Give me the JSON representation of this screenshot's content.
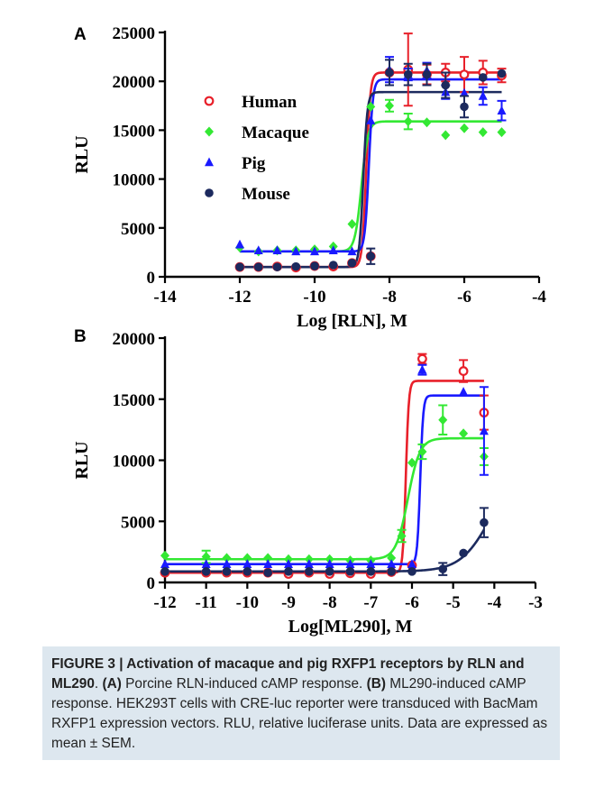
{
  "chart_data": [
    {
      "panel": "A",
      "type": "scatter",
      "xlabel": "Log [RLN], M",
      "ylabel": "RLU",
      "xlim": [
        -14,
        -4
      ],
      "ylim": [
        0,
        25000
      ],
      "xticks": [
        -14,
        -12,
        -10,
        -8,
        -6,
        -4
      ],
      "yticks": [
        0,
        5000,
        10000,
        15000,
        20000,
        25000
      ],
      "legend_position": "upper-left",
      "series": [
        {
          "name": "Human",
          "marker": "circle-open",
          "color": "#e8202a",
          "x": [
            -12,
            -11.5,
            -11,
            -10.5,
            -10,
            -9.5,
            -9,
            -8.5,
            -8,
            -7.5,
            -7,
            -6.5,
            -6,
            -5.5,
            -5
          ],
          "y": [
            1000,
            1000,
            1050,
            950,
            1100,
            1050,
            1400,
            2100,
            20900,
            21200,
            20700,
            20900,
            20700,
            20900,
            20600
          ],
          "err": [
            0,
            0,
            0,
            0,
            0,
            0,
            0,
            0,
            0,
            3700,
            1000,
            900,
            1800,
            1200,
            700
          ],
          "fit": {
            "bottom": 1000,
            "top": 20900,
            "logec50": -8.62,
            "hill": 8
          }
        },
        {
          "name": "Macaque",
          "marker": "diamond",
          "color": "#33e833",
          "x": [
            -12,
            -11.5,
            -11,
            -10.5,
            -10,
            -9.5,
            -9,
            -8.5,
            -8,
            -7.5,
            -7,
            -6.5,
            -6,
            -5.5,
            -5
          ],
          "y": [
            3000,
            2600,
            2700,
            2700,
            2800,
            3100,
            5400,
            17400,
            17500,
            15900,
            15800,
            14500,
            15200,
            14800,
            14800
          ],
          "err": [
            0,
            0,
            0,
            0,
            0,
            0,
            0,
            0,
            600,
            800,
            0,
            0,
            0,
            0,
            0
          ],
          "fit": {
            "bottom": 2600,
            "top": 15900,
            "logec50": -8.75,
            "hill": 5
          }
        },
        {
          "name": "Pig",
          "marker": "triangle",
          "color": "#1a1aff",
          "x": [
            -12,
            -11.5,
            -11,
            -10.5,
            -10,
            -9.5,
            -9,
            -8.5,
            -8,
            -7.5,
            -7,
            -6.5,
            -6,
            -5.5,
            -5
          ],
          "y": [
            3300,
            2700,
            2700,
            2600,
            2600,
            2700,
            2600,
            16000,
            21200,
            20700,
            21100,
            18900,
            18800,
            18500,
            17000
          ],
          "err": [
            0,
            0,
            0,
            0,
            0,
            0,
            0,
            0,
            1300,
            600,
            800,
            700,
            0,
            900,
            1000
          ],
          "fit": {
            "bottom": 2600,
            "top": 20200,
            "logec50": -8.55,
            "hill": 8
          }
        },
        {
          "name": "Mouse",
          "marker": "circle",
          "color": "#1c2a5e",
          "x": [
            -12,
            -11.5,
            -11,
            -10.5,
            -10,
            -9.5,
            -9,
            -8.5,
            -8,
            -7.5,
            -7,
            -6.5,
            -6,
            -5.5,
            -5
          ],
          "y": [
            1000,
            1000,
            1000,
            1050,
            1100,
            1200,
            1400,
            2100,
            20900,
            20700,
            20700,
            19600,
            17400,
            20400,
            20800
          ],
          "err": [
            0,
            0,
            0,
            0,
            0,
            0,
            0,
            800,
            1300,
            1100,
            1100,
            1300,
            1100,
            0,
            0
          ],
          "fit": {
            "bottom": 1000,
            "top": 18900,
            "logec50": -8.7,
            "hill": 8
          }
        }
      ]
    },
    {
      "panel": "B",
      "type": "scatter",
      "xlabel": "Log[ML290], M",
      "ylabel": "RLU",
      "xlim": [
        -12,
        -3
      ],
      "ylim": [
        0,
        20000
      ],
      "xticks": [
        -12,
        -11,
        -10,
        -9,
        -8,
        -7,
        -6,
        -5,
        -4,
        -3
      ],
      "yticks": [
        0,
        5000,
        10000,
        15000,
        20000
      ],
      "series": [
        {
          "name": "Human",
          "marker": "circle-open",
          "color": "#e8202a",
          "x": [
            -12,
            -11,
            -10.5,
            -10,
            -9.5,
            -9,
            -8.5,
            -8,
            -7.5,
            -7,
            -6.5,
            -6,
            -5.75,
            -4.75,
            -4.25
          ],
          "y": [
            800,
            800,
            800,
            800,
            800,
            700,
            800,
            700,
            750,
            700,
            850,
            1400,
            18300,
            17300,
            13900
          ],
          "err": [
            0,
            0,
            0,
            0,
            0,
            0,
            0,
            0,
            0,
            0,
            0,
            0,
            400,
            900,
            1400
          ],
          "fit": {
            "bottom": 800,
            "top": 16500,
            "logec50": -6.15,
            "hill": 12
          }
        },
        {
          "name": "Macaque",
          "marker": "diamond",
          "color": "#33e833",
          "x": [
            -12,
            -11,
            -10.5,
            -10,
            -9.5,
            -9,
            -8.5,
            -8,
            -7.5,
            -7,
            -6.5,
            -6.25,
            -6,
            -5.75,
            -5.25,
            -4.75,
            -4.25
          ],
          "y": [
            2200,
            2100,
            2000,
            2000,
            2000,
            1900,
            1900,
            1900,
            1800,
            1800,
            2000,
            3800,
            9800,
            10700,
            13300,
            12200,
            10300
          ],
          "err": [
            0,
            500,
            0,
            0,
            0,
            0,
            0,
            0,
            0,
            0,
            0,
            500,
            0,
            600,
            1200,
            0,
            700
          ],
          "fit": {
            "bottom": 1900,
            "top": 11800,
            "logec50": -6.1,
            "hill": 3
          }
        },
        {
          "name": "Pig",
          "marker": "triangle",
          "color": "#1a1aff",
          "x": [
            -12,
            -11,
            -10.5,
            -10,
            -9.5,
            -9,
            -8.5,
            -8,
            -7.5,
            -7,
            -6.5,
            -6,
            -5.75,
            -4.75,
            -4.25
          ],
          "y": [
            1500,
            1500,
            1500,
            1500,
            1500,
            1500,
            1500,
            1500,
            1500,
            1500,
            1500,
            1500,
            17400,
            15600,
            12400
          ],
          "err": [
            0,
            0,
            0,
            0,
            0,
            0,
            0,
            0,
            0,
            0,
            0,
            0,
            400,
            0,
            3600
          ],
          "fit": {
            "bottom": 1500,
            "top": 15300,
            "logec50": -5.8,
            "hill": 12
          }
        },
        {
          "name": "Mouse",
          "marker": "circle",
          "color": "#1c2a5e",
          "x": [
            -12,
            -11,
            -10.5,
            -10,
            -9.5,
            -9,
            -8.5,
            -8,
            -7.5,
            -7,
            -6.5,
            -6,
            -5.25,
            -4.75,
            -4.25
          ],
          "y": [
            900,
            900,
            900,
            900,
            800,
            900,
            900,
            900,
            900,
            900,
            900,
            900,
            1100,
            2400,
            4900
          ],
          "err": [
            0,
            0,
            0,
            0,
            0,
            0,
            0,
            0,
            0,
            0,
            0,
            0,
            500,
            0,
            1200
          ],
          "fit": {
            "bottom": 900,
            "top": 9500,
            "logec50": -4.1,
            "hill": 1.2
          }
        }
      ]
    }
  ],
  "caption": {
    "lead": "FIGURE 3 | Activation of macaque and pig RXFP1 receptors by RLN and ML290",
    "a_label": "(A)",
    "a_text": " Porcine RLN-induced cAMP response. ",
    "b_label": "(B)",
    "b_text": " ML290-induced cAMP response. HEK293T cells with CRE-luc reporter were transduced with BacMam RXFP1 expression vectors. RLU, relative luciferase units. Data are expressed as mean ± SEM."
  }
}
